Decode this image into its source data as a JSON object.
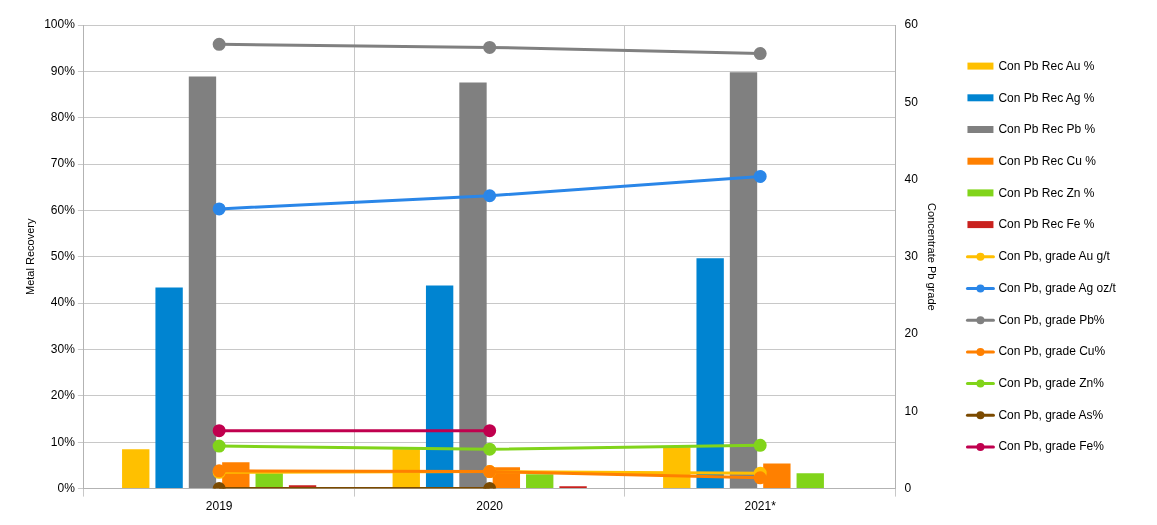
{
  "chart_data": {
    "type": "bar",
    "categories": [
      "2019",
      "2020",
      "2021*"
    ],
    "ylabel": "Metal Recovery",
    "y2label": "Concentrate Pb grade",
    "ylim": [
      0,
      100
    ],
    "yticks": [
      {
        "value": 0,
        "label": "0%"
      },
      {
        "value": 10,
        "label": "10%"
      },
      {
        "value": 20,
        "label": "20%"
      },
      {
        "value": 30,
        "label": "30%"
      },
      {
        "value": 40,
        "label": "40%"
      },
      {
        "value": 50,
        "label": "50%"
      },
      {
        "value": 60,
        "label": "60%"
      },
      {
        "value": 70,
        "label": "70%"
      },
      {
        "value": 80,
        "label": "80%"
      },
      {
        "value": 90,
        "label": "90%"
      },
      {
        "value": 100,
        "label": "100%"
      }
    ],
    "y2lim": [
      0,
      60
    ],
    "y2ticks": [
      0,
      10,
      20,
      30,
      40,
      50,
      60
    ],
    "grid": true,
    "legend": "right",
    "marker": "circle",
    "series": [
      {
        "name": "Con Pb Rec Au %",
        "color": "#ffc000",
        "values": [
          8.5,
          8.5,
          8.9
        ]
      },
      {
        "name": "Con Pb Rec Ag %",
        "color": "#0084d1",
        "values": [
          43.4,
          43.8,
          49.7
        ]
      },
      {
        "name": "Con Pb Rec Pb %",
        "color": "#808080",
        "values": [
          88.9,
          87.6,
          89.8
        ]
      },
      {
        "name": "Con Pb Rec Cu %",
        "color": "#ff8000",
        "values": [
          5.7,
          4.6,
          5.4
        ]
      },
      {
        "name": "Con Pb Rec Zn %",
        "color": "#81d41a",
        "values": [
          3.3,
          3.1,
          3.3
        ]
      },
      {
        "name": "Con Pb Rec Fe %",
        "color": "#c9211e",
        "values": [
          0.7,
          0.5,
          null
        ]
      },
      {
        "name": "Con Pb, grade Au g/t",
        "type": "line",
        "axis": "y2",
        "color": "#ffbf00",
        "values": [
          2.1,
          2.2,
          2.0
        ]
      },
      {
        "name": "Con Pb, grade Ag oz/t",
        "type": "line",
        "axis": "y2",
        "color": "#2a86e8",
        "values": [
          36.2,
          37.9,
          40.4
        ]
      },
      {
        "name": "Con Pb, grade Pb%",
        "type": "line",
        "axis": "y2",
        "color": "#808080",
        "values": [
          57.5,
          57.1,
          56.3
        ]
      },
      {
        "name": "Con Pb, grade Cu%",
        "type": "line",
        "axis": "y2",
        "color": "#ff8000",
        "values": [
          2.3,
          2.2,
          1.4
        ]
      },
      {
        "name": "Con Pb, grade Zn%",
        "type": "line",
        "axis": "y2",
        "color": "#81d41a",
        "values": [
          5.5,
          5.1,
          5.6
        ]
      },
      {
        "name": "Con Pb, grade As%",
        "type": "line",
        "axis": "y2",
        "color": "#7b4a00",
        "values": [
          0,
          0,
          null
        ]
      },
      {
        "name": "Con Pb, grade Fe%",
        "type": "line",
        "axis": "y2",
        "color": "#c0004e",
        "values": [
          7.5,
          7.5,
          null
        ]
      }
    ]
  }
}
